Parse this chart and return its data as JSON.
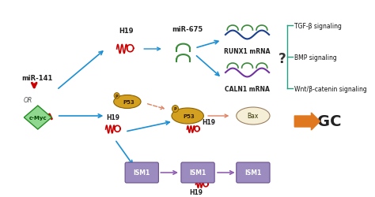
{
  "bg_color": "#ffffff",
  "fig_width": 4.74,
  "fig_height": 2.51,
  "dpi": 100,
  "signaling_labels": [
    "TGF-β signaling",
    "BMP signaling",
    "Wnt/β-catenin signaling"
  ],
  "arrow_color_blue": "#1B8FD4",
  "arrow_color_pink": "#E08060",
  "arrow_color_purple": "#9060B0",
  "arrow_color_orange": "#E07820",
  "color_red": "#CC0000",
  "color_green": "#3A8A3A",
  "color_dark_blue": "#1B3E8F",
  "color_purple_rna": "#7030A0",
  "color_golden": "#D4A020",
  "color_teal": "#20A080",
  "color_limegreen": "#90D890",
  "color_ism1": "#9B8BBF"
}
